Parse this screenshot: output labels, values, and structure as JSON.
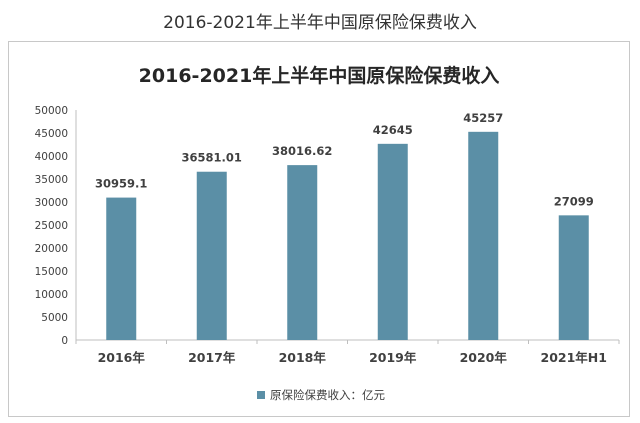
{
  "page_caption": "2016-2021年上半年中国原保险保费收入",
  "chart_data": {
    "type": "bar",
    "title": "2016-2021年上半年中国原保险保费收入",
    "categories": [
      "2016年",
      "2017年",
      "2018年",
      "2019年",
      "2020年",
      "2021年H1"
    ],
    "series": [
      {
        "name": "原保险保费收入：亿元",
        "values": [
          30959.1,
          36581.01,
          38016.62,
          42645,
          45257,
          27099
        ]
      }
    ],
    "data_labels": [
      "30959.1",
      "36581.01",
      "38016.62",
      "42645",
      "45257",
      "27099"
    ],
    "yticks": [
      "0",
      "5000",
      "10000",
      "15000",
      "20000",
      "25000",
      "30000",
      "35000",
      "40000",
      "45000",
      "50000"
    ],
    "ylim": [
      0,
      50000
    ],
    "xlabel": "",
    "ylabel": "",
    "grid": false,
    "legend_position": "bottom",
    "colors": {
      "bar": "#5b8fa6",
      "axis": "#bfbfbf",
      "text": "#404040",
      "title": "#262626"
    }
  }
}
